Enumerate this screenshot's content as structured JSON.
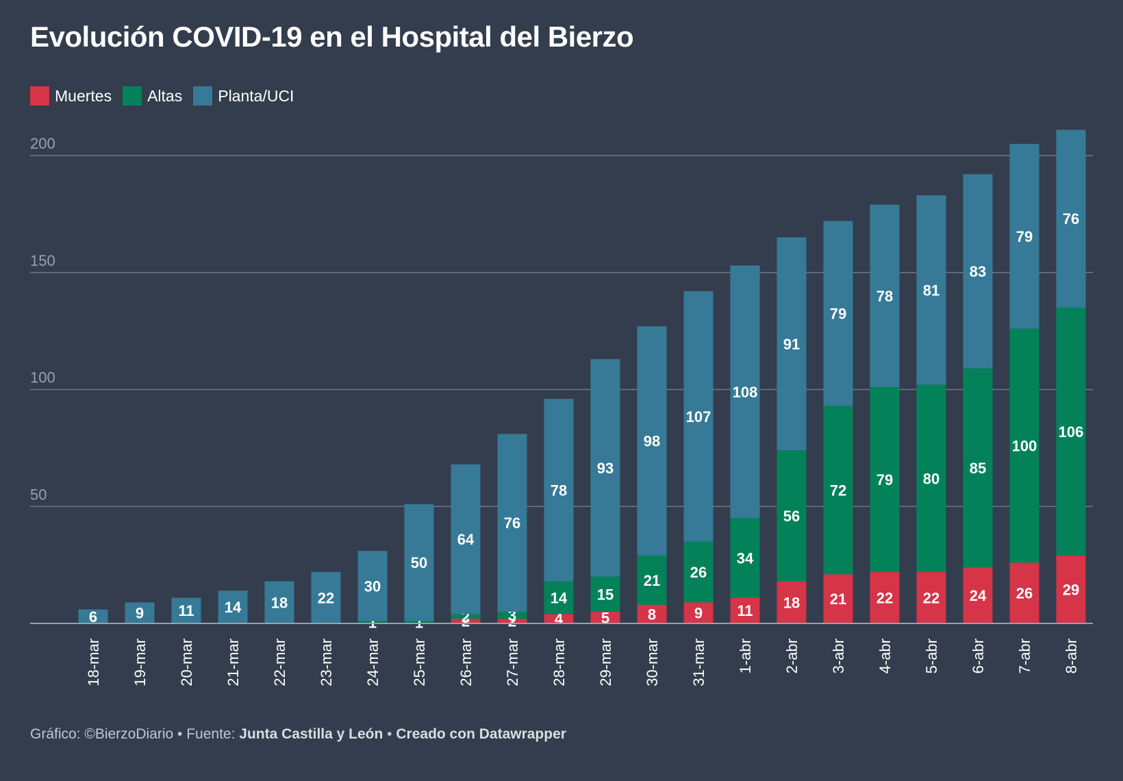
{
  "title": "Evolución COVID-19 en el Hospital del Bierzo",
  "legend": [
    {
      "label": "Muertes",
      "color": "#d63447"
    },
    {
      "label": "Altas",
      "color": "#03825a"
    },
    {
      "label": "Planta/UCI",
      "color": "#377a97"
    }
  ],
  "footer": {
    "prefix": "Gráfico: ©BierzoDiario • Fuente: ",
    "source": "Junta Castilla y León",
    "sep": " • ",
    "created": "Creado con Datawrapper"
  },
  "chart_data": {
    "type": "bar",
    "stacked": true,
    "title": "Evolución COVID-19 en el Hospital del Bierzo",
    "categories": [
      "18-mar",
      "19-mar",
      "20-mar",
      "21-mar",
      "22-mar",
      "23-mar",
      "24-mar",
      "25-mar",
      "26-mar",
      "27-mar",
      "28-mar",
      "29-mar",
      "30-mar",
      "31-mar",
      "1-abr",
      "2-abr",
      "3-abr",
      "4-abr",
      "5-abr",
      "6-abr",
      "7-abr",
      "8-abr"
    ],
    "series": [
      {
        "name": "Muertes",
        "color": "#d63447",
        "values": [
          0,
          0,
          0,
          0,
          0,
          0,
          0,
          0,
          2,
          2,
          4,
          5,
          8,
          9,
          11,
          18,
          21,
          22,
          22,
          24,
          26,
          29
        ]
      },
      {
        "name": "Altas",
        "color": "#03825a",
        "values": [
          0,
          0,
          0,
          0,
          0,
          0,
          1,
          1,
          2,
          3,
          14,
          15,
          21,
          26,
          34,
          56,
          72,
          79,
          80,
          85,
          100,
          106
        ]
      },
      {
        "name": "Planta/UCI",
        "color": "#377a97",
        "values": [
          6,
          9,
          11,
          14,
          18,
          22,
          30,
          50,
          64,
          76,
          78,
          93,
          98,
          107,
          108,
          91,
          79,
          78,
          81,
          83,
          79,
          76
        ]
      }
    ],
    "yticks": [
      50,
      100,
      150,
      200
    ],
    "ylim": [
      0,
      210
    ],
    "xlabel": "",
    "ylabel": "",
    "grid": true,
    "legend_position": "top-left"
  }
}
